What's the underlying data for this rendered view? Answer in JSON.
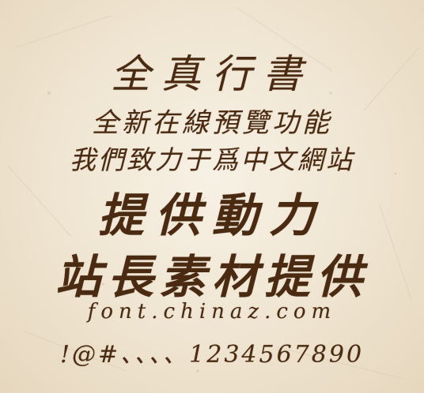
{
  "lines": {
    "title": "全真行書",
    "line2": "全新在線預覽功能",
    "line3": "我們致力于爲中文網站",
    "line4": "提供動力",
    "line5": "站長素材提供",
    "url": "font.chinaz.com",
    "symbols": "!@#、、、、1234567890"
  },
  "colors": {
    "ink": "#4b2a12",
    "paper": "#efe4d0"
  }
}
